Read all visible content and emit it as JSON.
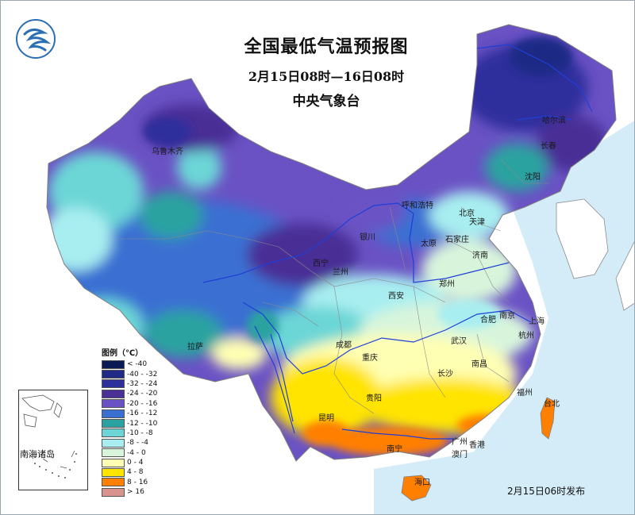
{
  "title": {
    "main": "全国最低气温预报图",
    "period": "2月15日08时—16日08时",
    "org": "中央气象台"
  },
  "legend": {
    "title": "图例（℃）",
    "items": [
      {
        "label": "< -40",
        "color": "#0a1a55"
      },
      {
        "label": "-40 - -32",
        "color": "#1f2a86"
      },
      {
        "label": "-32 - -24",
        "color": "#2f2f9c"
      },
      {
        "label": "-24 - -20",
        "color": "#4a2f96"
      },
      {
        "label": "-20 - -16",
        "color": "#6a52c4"
      },
      {
        "label": "-16 - -12",
        "color": "#3a6fd2"
      },
      {
        "label": "-12 - -10",
        "color": "#2aa3a0"
      },
      {
        "label": "-10 - -8",
        "color": "#6cd6d6"
      },
      {
        "label": "-8 - -4",
        "color": "#a8eef0"
      },
      {
        "label": "-4 - 0",
        "color": "#d8f5dc"
      },
      {
        "label": "0 - 4",
        "color": "#ffffb3"
      },
      {
        "label": "4 - 8",
        "color": "#ffe400"
      },
      {
        "label": "8 - 16",
        "color": "#ff7f00"
      },
      {
        "label": "> 16",
        "color": "#d9938f"
      }
    ]
  },
  "cities": {
    "urumqi": "乌鲁木齐",
    "harbin": "哈尔滨",
    "changchun": "长春",
    "shenyang": "沈阳",
    "hohhot": "呼和浩特",
    "beijing": "北京",
    "tianjin": "天津",
    "shijiazhuang": "石家庄",
    "taiyuan": "太原",
    "jinan": "济南",
    "yinchuan": "银川",
    "xining": "西宁",
    "lanzhou": "兰州",
    "zhengzhou": "郑州",
    "xian": "西安",
    "hefei": "合肥",
    "nanjing": "南京",
    "shanghai": "上海",
    "hangzhou": "杭州",
    "wuhan": "武汉",
    "lhasa": "拉萨",
    "chengdu": "成都",
    "chongqing": "重庆",
    "changsha": "长沙",
    "nanchang": "南昌",
    "guiyang": "贵阳",
    "kunming": "昆明",
    "fuzhou": "福州",
    "taibei": "台北",
    "nanning": "南宁",
    "guangzhou": "广州",
    "hongkong": "香港",
    "macau": "澳门",
    "haikou": "海口"
  },
  "inset_label": "南海诸岛",
  "issue_time": "2月15日06时发布",
  "colors": {
    "sea": "#d4ecf7",
    "river": "#1f3fd6",
    "border": "#7f7f7f"
  }
}
